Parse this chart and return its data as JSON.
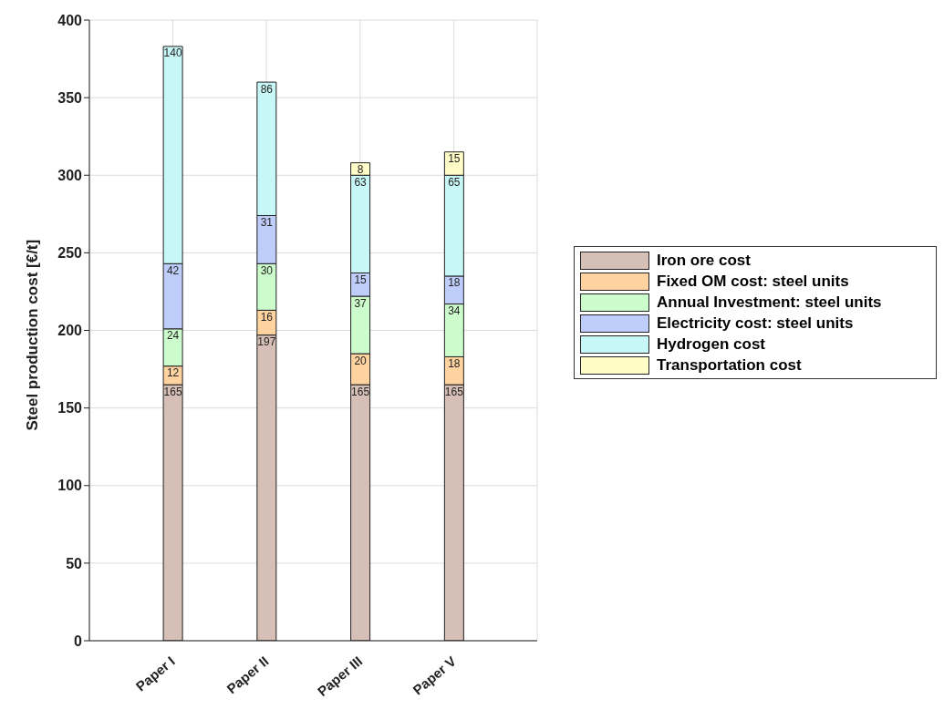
{
  "chart_data": {
    "type": "bar",
    "stacked": true,
    "ylabel": "Steel production cost [€/t]",
    "categories": [
      "Paper I",
      "Paper II",
      "Paper III",
      "Paper V"
    ],
    "series": [
      {
        "name": "Iron ore cost",
        "color": "#d6bfb6",
        "values": [
          165,
          197,
          165,
          165
        ]
      },
      {
        "name": "Fixed OM cost: steel units",
        "color": "#ffd39f",
        "values": [
          12,
          16,
          20,
          18
        ]
      },
      {
        "name": "Annual Investment: steel units",
        "color": "#ccfccc",
        "values": [
          24,
          30,
          37,
          34
        ]
      },
      {
        "name": "Electricity cost: steel units",
        "color": "#bfcdfb",
        "values": [
          42,
          31,
          15,
          18
        ]
      },
      {
        "name": "Hydrogen cost",
        "color": "#c8f7f7",
        "values": [
          140,
          86,
          63,
          65
        ]
      },
      {
        "name": "Transportation cost",
        "color": "#fffcc8",
        "values": [
          null,
          null,
          8,
          15
        ]
      }
    ],
    "ylim": [
      0,
      400
    ],
    "yticks": [
      0,
      50,
      100,
      150,
      200,
      250,
      300,
      350,
      400
    ],
    "grid": true,
    "legend": "right",
    "data_labels": true
  }
}
